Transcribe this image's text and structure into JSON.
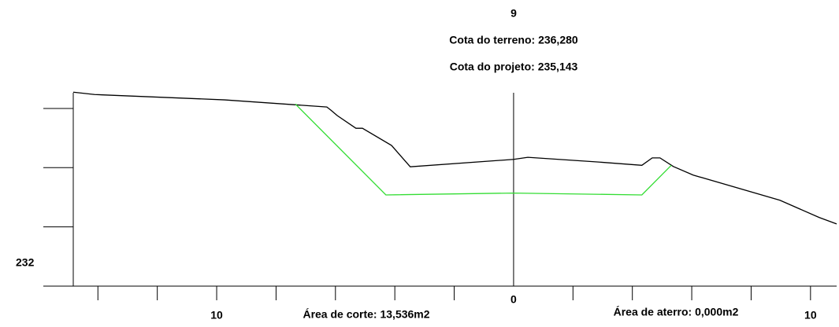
{
  "chart_data": {
    "type": "line",
    "station": "9",
    "annotations": [
      "Cota do terreno: 236,280",
      "Cota do projeto: 235,143",
      "Área de corte: 13,536m2",
      "Área de aterro: 0,000m2"
    ],
    "series": [
      {
        "name": "terreno",
        "color": "#000000",
        "x": [
          -14.83,
          -14.11,
          -9.73,
          -6.29,
          -6.15,
          -5.94,
          -5.31,
          -5.09,
          -4.11,
          -3.48,
          0,
          0.48,
          2.86,
          4.32,
          4.67,
          4.93,
          5.38,
          6.05,
          8.97,
          10.29,
          10.88
        ],
        "values": [
          238.55,
          238.47,
          238.29,
          238.05,
          237.94,
          237.76,
          237.33,
          237.33,
          236.75,
          236.03,
          236.28,
          236.35,
          236.19,
          236.08,
          236.33,
          236.33,
          236.04,
          235.75,
          234.9,
          234.32,
          234.1
        ]
      },
      {
        "name": "projeto",
        "color": "#33dd33",
        "x": [
          -7.35,
          -4.3,
          0,
          4.32,
          5.31
        ],
        "values": [
          238.15,
          235.08,
          235.143,
          235.08,
          236.08
        ]
      }
    ],
    "xlim": [
      -14.83,
      10.88
    ],
    "ylim": [
      232,
      238.53
    ],
    "xticks": [
      {
        "value": -10,
        "label": "10"
      },
      0,
      10
    ],
    "xminor_ticks": [
      -14,
      -12,
      -8,
      -6,
      -4,
      -2,
      2,
      4,
      6,
      8
    ],
    "yticks": [
      232
    ],
    "yminor_ticks": [
      234,
      236,
      238
    ]
  }
}
